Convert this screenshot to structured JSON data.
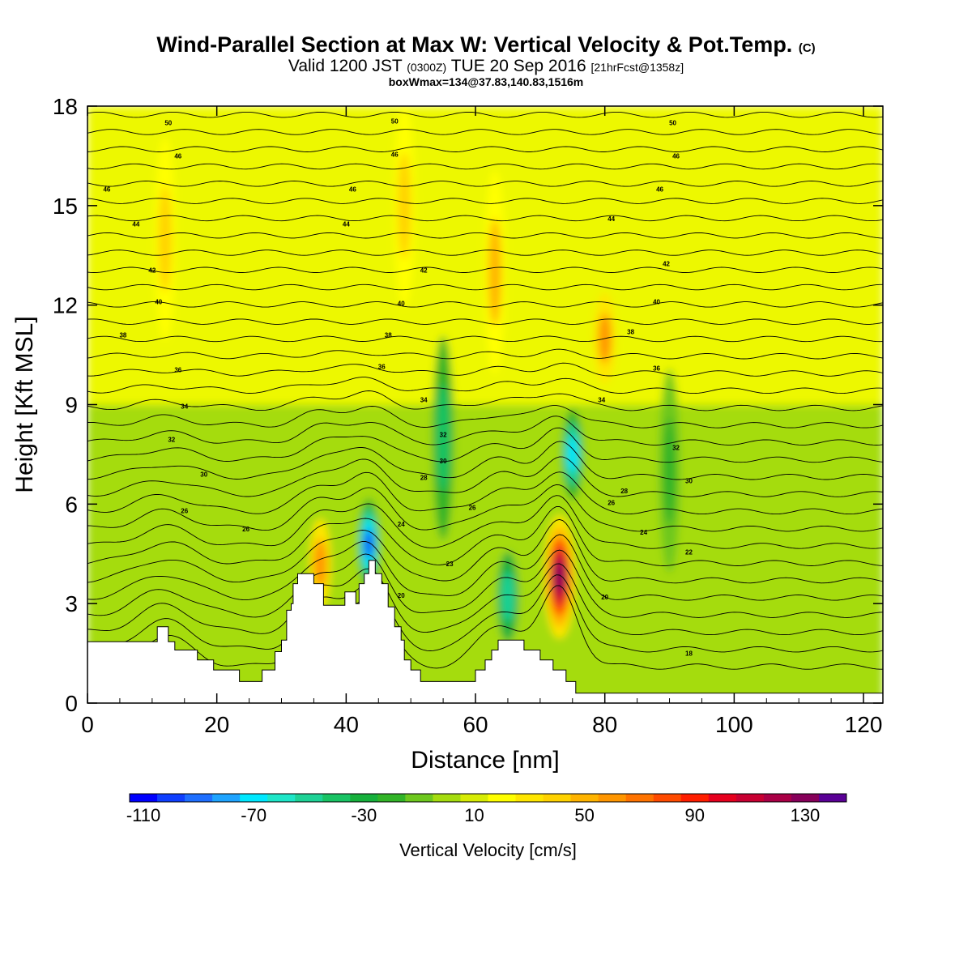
{
  "title": {
    "main": "Wind-Parallel Section at Max W: Vertical Velocity & Pot.Temp.",
    "copyright": "(C)",
    "valid_prefix": "Valid 1200 JST",
    "valid_z": "(0300Z)",
    "valid_date": "TUE 20 Sep 2016",
    "forecast": "[21hrFcst@1358z]",
    "box": "boxWmax=134@37.83,140.83,1516m"
  },
  "chart_data": {
    "type": "heatmap",
    "xlabel": "Distance [nm]",
    "ylabel": "Height [Kft MSL]",
    "xlim": [
      0,
      123
    ],
    "ylim": [
      0,
      18
    ],
    "x_ticks": [
      0,
      20,
      40,
      60,
      80,
      100,
      120
    ],
    "y_ticks": [
      0,
      3,
      6,
      9,
      12,
      15,
      18
    ],
    "colorbar": {
      "label": "Vertical Velocity [cm/s]",
      "ticks": [
        -110,
        -70,
        -30,
        10,
        50,
        90,
        130
      ],
      "min": -115,
      "max": 145,
      "colors": [
        "#0000ff",
        "#0f3fff",
        "#1f6fff",
        "#1fa4ff",
        "#00e8ff",
        "#1ee6c8",
        "#1ed296",
        "#19c364",
        "#16b03c",
        "#32b428",
        "#6ec81e",
        "#a5dc0f",
        "#d7ec05",
        "#ffff00",
        "#ffe600",
        "#ffd200",
        "#ffb400",
        "#ff9600",
        "#ff7300",
        "#ff4b00",
        "#ff1e00",
        "#e6001e",
        "#c80032",
        "#aa0046",
        "#87005a",
        "#5a0096"
      ]
    },
    "w_features": [
      {
        "x": 73,
        "y": 3.8,
        "w_cms": 134
      },
      {
        "x": 80,
        "y": 11,
        "w_cms": 55
      },
      {
        "x": 63,
        "y": 13,
        "w_cms": 45
      },
      {
        "x": 49,
        "y": 15,
        "w_cms": 40
      },
      {
        "x": 12,
        "y": 14,
        "w_cms": 40
      },
      {
        "x": 36,
        "y": 4.2,
        "w_cms": 55
      },
      {
        "x": 75,
        "y": 7.5,
        "w_cms": -70
      },
      {
        "x": 43.5,
        "y": 4.8,
        "w_cms": -100
      },
      {
        "x": 65,
        "y": 3.2,
        "w_cms": -55
      },
      {
        "x": 55,
        "y": 8,
        "w_cms": -40
      },
      {
        "x": 90,
        "y": 7,
        "w_cms": -25
      }
    ],
    "theta_labels": [
      {
        "x": 12.5,
        "y": 17.5,
        "label": "50"
      },
      {
        "x": 47.5,
        "y": 17.55,
        "label": "50"
      },
      {
        "x": 90.5,
        "y": 17.5,
        "label": "50"
      },
      {
        "x": 14,
        "y": 16.5,
        "label": "46"
      },
      {
        "x": 47.5,
        "y": 16.55,
        "label": "46"
      },
      {
        "x": 91,
        "y": 16.5,
        "label": "46"
      },
      {
        "x": 3,
        "y": 15.5,
        "label": "46"
      },
      {
        "x": 41,
        "y": 15.5,
        "label": "46"
      },
      {
        "x": 88.5,
        "y": 15.5,
        "label": "46"
      },
      {
        "x": 7.5,
        "y": 14.45,
        "label": "44"
      },
      {
        "x": 40,
        "y": 14.45,
        "label": "44"
      },
      {
        "x": 81,
        "y": 14.6,
        "label": "44"
      },
      {
        "x": 10,
        "y": 13.05,
        "label": "42"
      },
      {
        "x": 52,
        "y": 13.05,
        "label": "42"
      },
      {
        "x": 89.5,
        "y": 13.25,
        "label": "42"
      },
      {
        "x": 11,
        "y": 12.1,
        "label": "40"
      },
      {
        "x": 48.5,
        "y": 12.05,
        "label": "40"
      },
      {
        "x": 88,
        "y": 12.1,
        "label": "40"
      },
      {
        "x": 5.5,
        "y": 11.1,
        "label": "38"
      },
      {
        "x": 46.5,
        "y": 11.1,
        "label": "38"
      },
      {
        "x": 84,
        "y": 11.2,
        "label": "38"
      },
      {
        "x": 14,
        "y": 10.05,
        "label": "36"
      },
      {
        "x": 45.5,
        "y": 10.15,
        "label": "36"
      },
      {
        "x": 88,
        "y": 10.1,
        "label": "36"
      },
      {
        "x": 15,
        "y": 8.95,
        "label": "34"
      },
      {
        "x": 52,
        "y": 9.15,
        "label": "34"
      },
      {
        "x": 79.5,
        "y": 9.15,
        "label": "34"
      },
      {
        "x": 13,
        "y": 7.95,
        "label": "32"
      },
      {
        "x": 55,
        "y": 8.1,
        "label": "32"
      },
      {
        "x": 91,
        "y": 7.7,
        "label": "32"
      },
      {
        "x": 18,
        "y": 6.9,
        "label": "30"
      },
      {
        "x": 55,
        "y": 7.3,
        "label": "30"
      },
      {
        "x": 93,
        "y": 6.7,
        "label": "30"
      },
      {
        "x": 52,
        "y": 6.8,
        "label": "28"
      },
      {
        "x": 83,
        "y": 6.4,
        "label": "28"
      },
      {
        "x": 15,
        "y": 5.8,
        "label": "26"
      },
      {
        "x": 59.5,
        "y": 5.9,
        "label": "26"
      },
      {
        "x": 81,
        "y": 6.05,
        "label": "26"
      },
      {
        "x": 24.5,
        "y": 5.25,
        "label": "26"
      },
      {
        "x": 48.5,
        "y": 5.4,
        "label": "24"
      },
      {
        "x": 86,
        "y": 5.15,
        "label": "24"
      },
      {
        "x": 56,
        "y": 4.2,
        "label": "23"
      },
      {
        "x": 93,
        "y": 4.55,
        "label": "22"
      },
      {
        "x": 48.5,
        "y": 3.25,
        "label": "20"
      },
      {
        "x": 80,
        "y": 3.2,
        "label": "20"
      },
      {
        "x": 93,
        "y": 1.5,
        "label": "18"
      }
    ],
    "terrain": [
      [
        0,
        1.85
      ],
      [
        10.8,
        1.85
      ],
      [
        10.8,
        2.3
      ],
      [
        12.5,
        2.3
      ],
      [
        12.5,
        1.85
      ],
      [
        13.5,
        1.85
      ],
      [
        13.5,
        1.6
      ],
      [
        17,
        1.6
      ],
      [
        17,
        1.3
      ],
      [
        19.5,
        1.3
      ],
      [
        19.5,
        1.0
      ],
      [
        23.5,
        1.0
      ],
      [
        23.5,
        0.65
      ],
      [
        27,
        0.65
      ],
      [
        27,
        1.0
      ],
      [
        29,
        1.0
      ],
      [
        29,
        1.55
      ],
      [
        30,
        1.55
      ],
      [
        30,
        1.9
      ],
      [
        30.8,
        1.9
      ],
      [
        30.8,
        2.8
      ],
      [
        31.5,
        2.8
      ],
      [
        31.5,
        3.0
      ],
      [
        31.8,
        3.0
      ],
      [
        31.8,
        3.6
      ],
      [
        32.5,
        3.6
      ],
      [
        32.5,
        3.9
      ],
      [
        35,
        3.9
      ],
      [
        35,
        3.6
      ],
      [
        36.5,
        3.6
      ],
      [
        36.5,
        2.95
      ],
      [
        39.8,
        2.95
      ],
      [
        39.8,
        3.35
      ],
      [
        41.5,
        3.35
      ],
      [
        41.5,
        3.0
      ],
      [
        42,
        3.0
      ],
      [
        42,
        3.6
      ],
      [
        42.8,
        3.6
      ],
      [
        42.8,
        3.9
      ],
      [
        43.5,
        3.9
      ],
      [
        43.5,
        4.3
      ],
      [
        44.5,
        4.3
      ],
      [
        44.5,
        3.9
      ],
      [
        45.5,
        3.9
      ],
      [
        45.5,
        3.6
      ],
      [
        46.5,
        3.6
      ],
      [
        46.5,
        2.9
      ],
      [
        47.5,
        2.9
      ],
      [
        47.5,
        2.3
      ],
      [
        48.5,
        2.3
      ],
      [
        48.5,
        1.9
      ],
      [
        49,
        1.9
      ],
      [
        49,
        1.3
      ],
      [
        50,
        1.3
      ],
      [
        50,
        1.0
      ],
      [
        51.5,
        1.0
      ],
      [
        51.5,
        0.65
      ],
      [
        60,
        0.65
      ],
      [
        60,
        1.0
      ],
      [
        61.5,
        1.0
      ],
      [
        61.5,
        1.3
      ],
      [
        62.5,
        1.3
      ],
      [
        62.5,
        1.6
      ],
      [
        63.5,
        1.6
      ],
      [
        63.5,
        1.9
      ],
      [
        67.5,
        1.9
      ],
      [
        67.5,
        1.6
      ],
      [
        70,
        1.6
      ],
      [
        70,
        1.3
      ],
      [
        72,
        1.3
      ],
      [
        72,
        1.0
      ],
      [
        74,
        1.0
      ],
      [
        74,
        0.65
      ],
      [
        75.5,
        0.65
      ],
      [
        75.5,
        0.3
      ],
      [
        123,
        0.3
      ],
      [
        123,
        0
      ],
      [
        0,
        0
      ]
    ]
  }
}
